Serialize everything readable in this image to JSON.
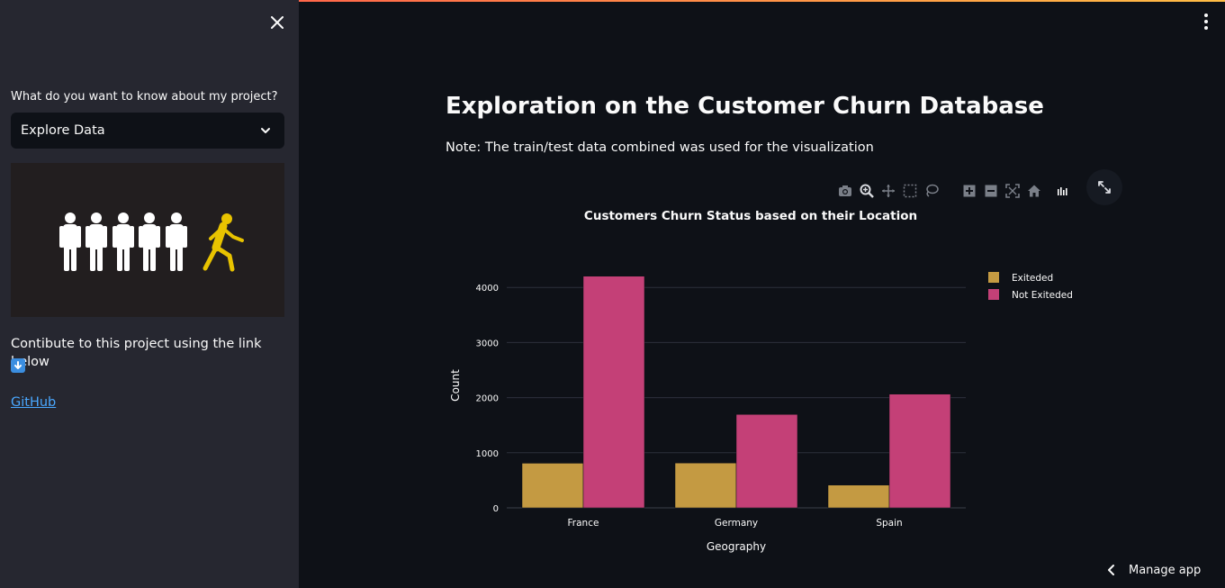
{
  "sidebar": {
    "close_icon": "close-icon",
    "select_label": "What do you want to know about my project?",
    "select_value": "Explore Data",
    "contribute_text": "Contibute to this project using the link below",
    "down_emoji_icon": "down-arrow-icon",
    "github_link": "GitHub"
  },
  "main": {
    "title": "Exploration on the Customer Churn Database",
    "note": "Note: The train/test data combined was used for the visualization"
  },
  "modebar": [
    "camera-icon",
    "zoom-icon",
    "pan-icon",
    "box-select-icon",
    "lasso-icon",
    "zoom-in-icon",
    "zoom-out-icon",
    "autoscale-icon",
    "home-icon",
    "plotly-logo-icon"
  ],
  "manage_app": "Manage app",
  "colors": {
    "exited": "#c49a42",
    "not_exited": "#c44077",
    "sidebar_bg": "#262730",
    "app_bg": "#0e1117"
  },
  "chart_data": {
    "type": "bar",
    "title": "Customers Churn Status based on their Location",
    "xlabel": "Geography",
    "ylabel": "Count",
    "categories": [
      "France",
      "Germany",
      "Spain"
    ],
    "series": [
      {
        "name": "Exiteded",
        "values": [
          810,
          814,
          413
        ],
        "color": "#c49a42"
      },
      {
        "name": "Not Exiteded",
        "values": [
          4204,
          1695,
          2064
        ],
        "color": "#c44077"
      }
    ],
    "ylim": [
      0,
      4200
    ],
    "yticks": [
      0,
      1000,
      2000,
      3000,
      4000
    ],
    "legend_position": "top-right",
    "grid": true
  }
}
